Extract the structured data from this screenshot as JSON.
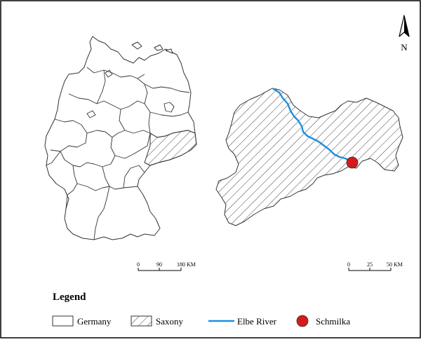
{
  "north_arrow": {
    "label": "N"
  },
  "scale_left": {
    "ticks": [
      "0",
      "90",
      "180 KM"
    ]
  },
  "scale_right": {
    "ticks": [
      "0",
      "25",
      "50 KM"
    ]
  },
  "legend": {
    "title": "Legend",
    "items": [
      {
        "label": "Germany",
        "symbol": "empty-box"
      },
      {
        "label": "Saxony",
        "symbol": "hatched-box"
      },
      {
        "label": "Elbe River",
        "symbol": "line"
      },
      {
        "label": "Schmilka",
        "symbol": "red-dot"
      }
    ]
  },
  "colors": {
    "river": "#1e8fe0",
    "marker": "#d61a1a",
    "outline": "#333333"
  }
}
